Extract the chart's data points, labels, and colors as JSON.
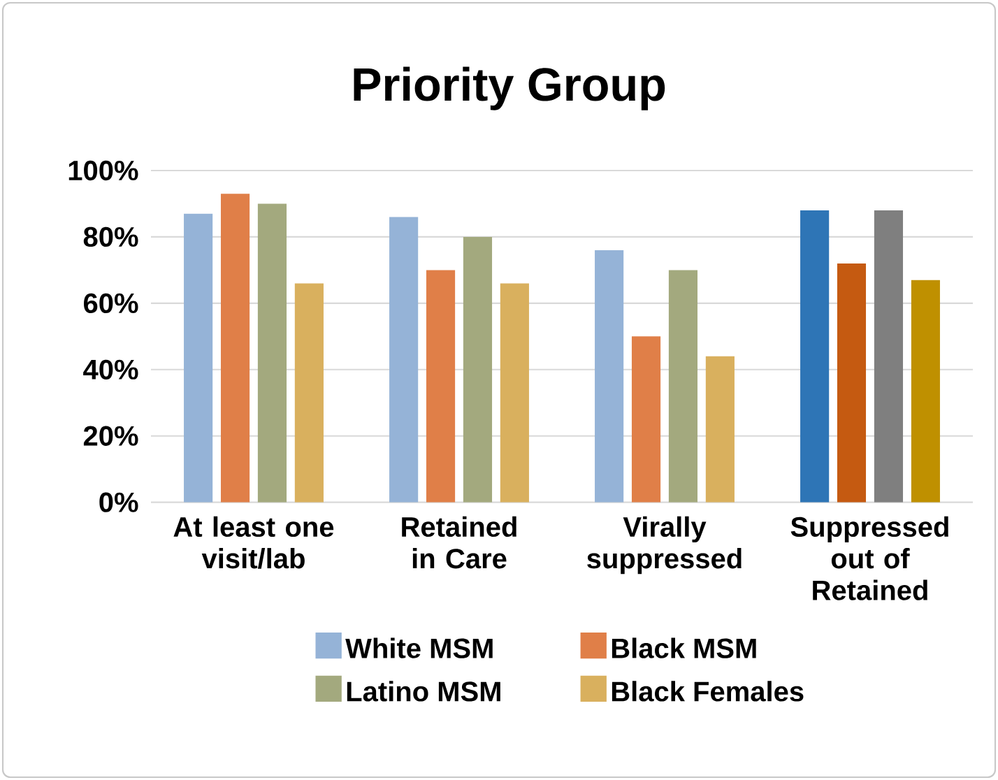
{
  "chart_data": {
    "type": "bar",
    "title": "Priority Group",
    "categories": [
      "At least one visit/lab",
      "Retained in Care",
      "Virally suppressed",
      "Suppressed out of Retained"
    ],
    "series": [
      {
        "name": "White MSM",
        "color": "#95b3d7",
        "colors": [
          "#95b3d7",
          "#95b3d7",
          "#95b3d7",
          "#2e75b6"
        ],
        "values": [
          87,
          86,
          76,
          88
        ]
      },
      {
        "name": "Black MSM",
        "color": "#e07f48",
        "colors": [
          "#e07f48",
          "#e07f48",
          "#e07f48",
          "#c55a11"
        ],
        "values": [
          93,
          70,
          50,
          72
        ]
      },
      {
        "name": "Latino MSM",
        "color": "#a3a97e",
        "colors": [
          "#a3a97e",
          "#a3a97e",
          "#a3a97e",
          "#7f7f7f"
        ],
        "values": [
          90,
          80,
          70,
          88
        ]
      },
      {
        "name": "Black Females",
        "color": "#d9b05e",
        "colors": [
          "#d9b05e",
          "#d9b05e",
          "#d9b05e",
          "#bf9000"
        ],
        "values": [
          66,
          66,
          44,
          67
        ]
      }
    ],
    "ylim": [
      0,
      100
    ],
    "yticks": [
      {
        "value": 0,
        "label": "0%"
      },
      {
        "value": 20,
        "label": "20%"
      },
      {
        "value": 40,
        "label": "40%"
      },
      {
        "value": 60,
        "label": "60%"
      },
      {
        "value": 80,
        "label": "80%"
      },
      {
        "value": 100,
        "label": "100%"
      }
    ],
    "grid": "y",
    "legend": "bottom"
  }
}
